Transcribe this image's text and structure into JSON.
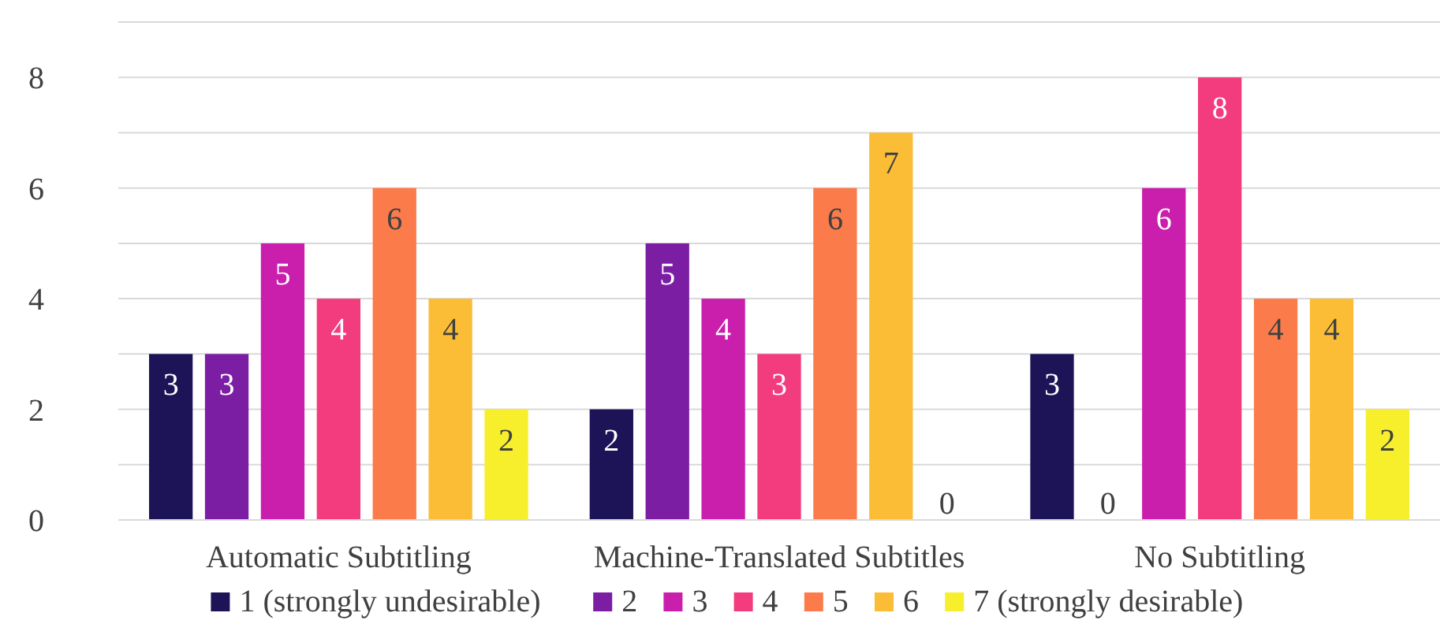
{
  "chart_data": {
    "type": "bar",
    "categories": [
      "Automatic Subtitling",
      "Machine-Translated Subtitles",
      "No Subtitling"
    ],
    "series": [
      {
        "name": "1 (strongly undesirable)",
        "color": "#1c1457",
        "values": [
          3,
          2,
          3
        ]
      },
      {
        "name": "2",
        "color": "#7b1ea3",
        "values": [
          3,
          5,
          0
        ]
      },
      {
        "name": "3",
        "color": "#c91fac",
        "values": [
          5,
          4,
          6
        ]
      },
      {
        "name": "4",
        "color": "#f23c7e",
        "values": [
          4,
          3,
          8
        ]
      },
      {
        "name": "5",
        "color": "#fb7b4b",
        "values": [
          6,
          6,
          4
        ]
      },
      {
        "name": "6",
        "color": "#fbbd36",
        "values": [
          4,
          7,
          4
        ]
      },
      {
        "name": "7 (strongly desirable)",
        "color": "#f7ef2c",
        "values": [
          2,
          0,
          2
        ]
      }
    ],
    "ylim": [
      0,
      9
    ],
    "yticks": [
      0,
      {
        "value": 1,
        "label": null
      },
      2,
      {
        "value": 3,
        "label": null
      },
      4,
      {
        "value": 5,
        "label": null
      },
      6,
      {
        "value": 7,
        "label": null
      },
      8,
      {
        "value": 9,
        "label": null
      }
    ],
    "grid": "y",
    "legend": "bottom",
    "data_labels": true
  }
}
